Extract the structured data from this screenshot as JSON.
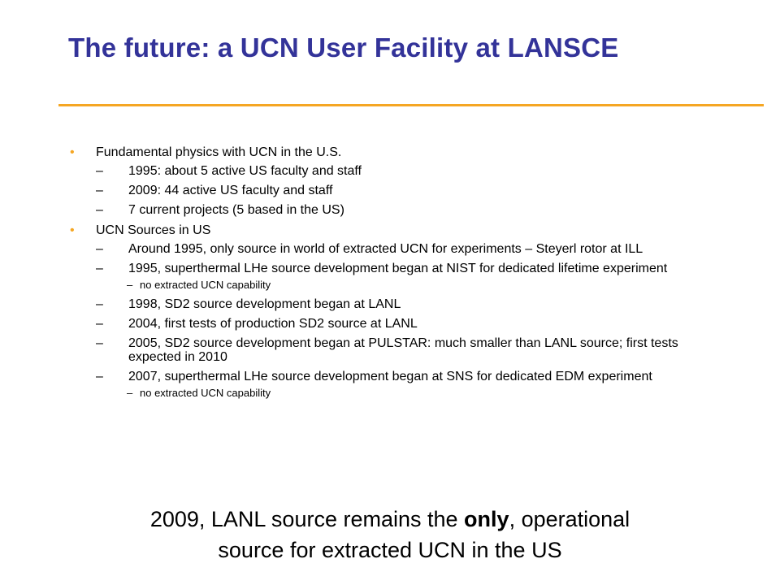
{
  "title": "The future: a UCN User Facility at LANSCE",
  "bullets": [
    {
      "text": "Fundamental physics with UCN in the U.S.",
      "subs": [
        {
          "text": "1995: about 5 active US faculty and staff"
        },
        {
          "text": "2009: 44 active US faculty and staff"
        },
        {
          "text": "7 current projects (5 based in the US)"
        }
      ]
    },
    {
      "text": "UCN Sources in US",
      "subs": [
        {
          "text": "Around 1995, only source in world of extracted UCN for experiments – Steyerl rotor at ILL"
        },
        {
          "text": "1995, superthermal LHe source development began at NIST for dedicated lifetime experiment",
          "subs": [
            "no extracted UCN capability"
          ]
        },
        {
          "text": "1998, SD2 source development began at LANL"
        },
        {
          "text": "2004, first tests of production SD2 source at LANL"
        },
        {
          "text": "2005, SD2 source development began at PULSTAR: much smaller than LANL source; first tests expected in 2010"
        },
        {
          "text": "2007, superthermal LHe source development began at SNS for dedicated EDM experiment",
          "subs": [
            "no extracted UCN capability"
          ]
        }
      ]
    }
  ],
  "conclusion": {
    "line1_pre": "2009, LANL source remains the ",
    "line1_bold": "only",
    "line1_post": ", operational",
    "line2": "source for extracted UCN in the US"
  },
  "symbols": {
    "bullet": "•",
    "dash": "–"
  },
  "colors": {
    "title": "#333399",
    "rule": "#f5a623",
    "bullet": "#f5a623",
    "text": "#000000"
  }
}
